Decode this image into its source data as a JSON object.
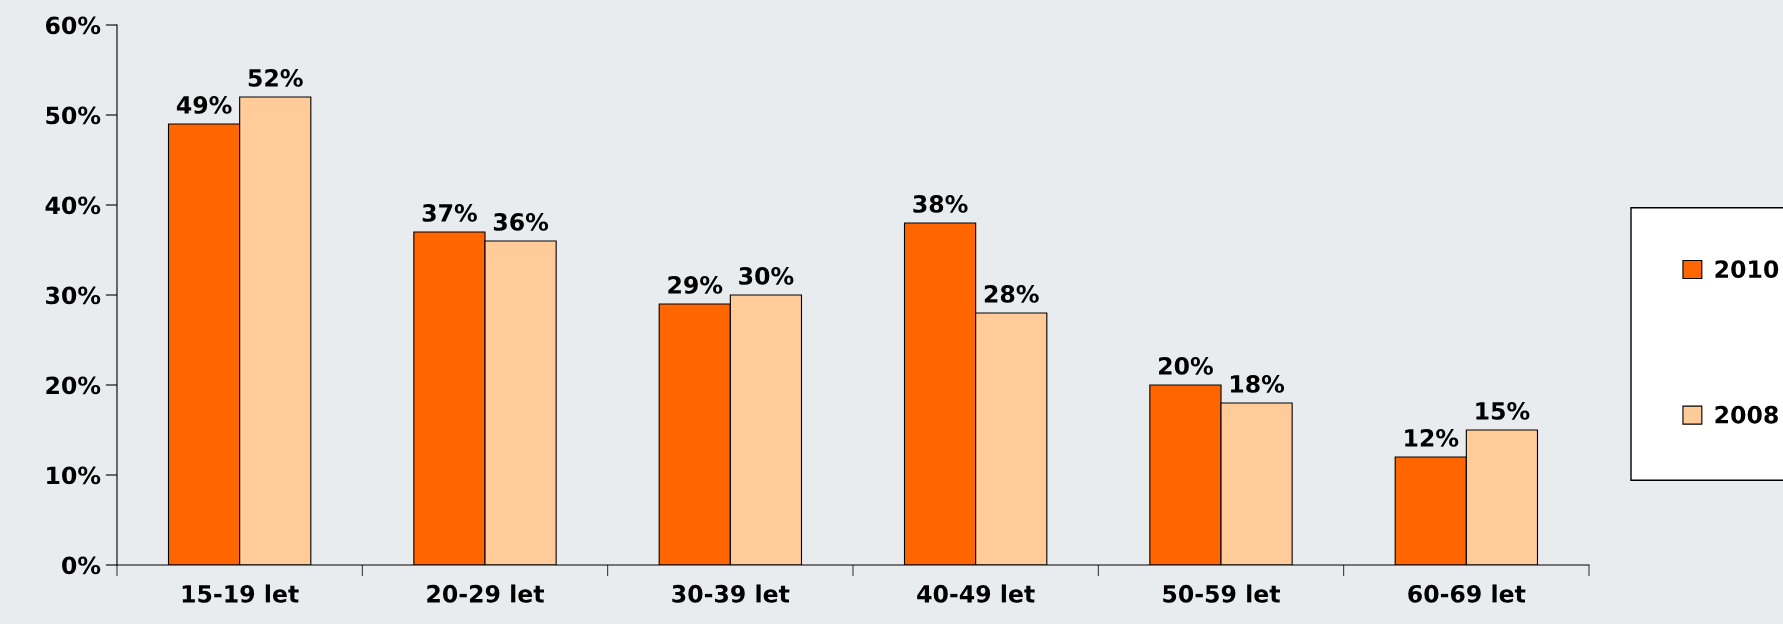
{
  "chart_data": {
    "type": "bar",
    "categories": [
      "15-19 let",
      "20-29 let",
      "30-39 let",
      "40-49 let",
      "50-59 let",
      "60-69 let"
    ],
    "series": [
      {
        "name": "2010",
        "color": "#ff6600",
        "values": [
          49,
          37,
          29,
          38,
          20,
          12
        ],
        "value_labels": [
          "49%",
          "37%",
          "29%",
          "38%",
          "20%",
          "12%"
        ]
      },
      {
        "name": "2008",
        "color": "#ffcc99",
        "values": [
          52,
          36,
          30,
          28,
          18,
          15
        ],
        "value_labels": [
          "52%",
          "36%",
          "30%",
          "28%",
          "18%",
          "15%"
        ]
      }
    ],
    "ylim": [
      0,
      60
    ],
    "yticks": [
      {
        "value": 0,
        "label": "0%"
      },
      {
        "value": 10,
        "label": "10%"
      },
      {
        "value": 20,
        "label": "20%"
      },
      {
        "value": 30,
        "label": "30%"
      },
      {
        "value": 40,
        "label": "40%"
      },
      {
        "value": 50,
        "label": "50%"
      },
      {
        "value": 60,
        "label": "60%"
      }
    ],
    "grid": false,
    "legend": "right"
  }
}
